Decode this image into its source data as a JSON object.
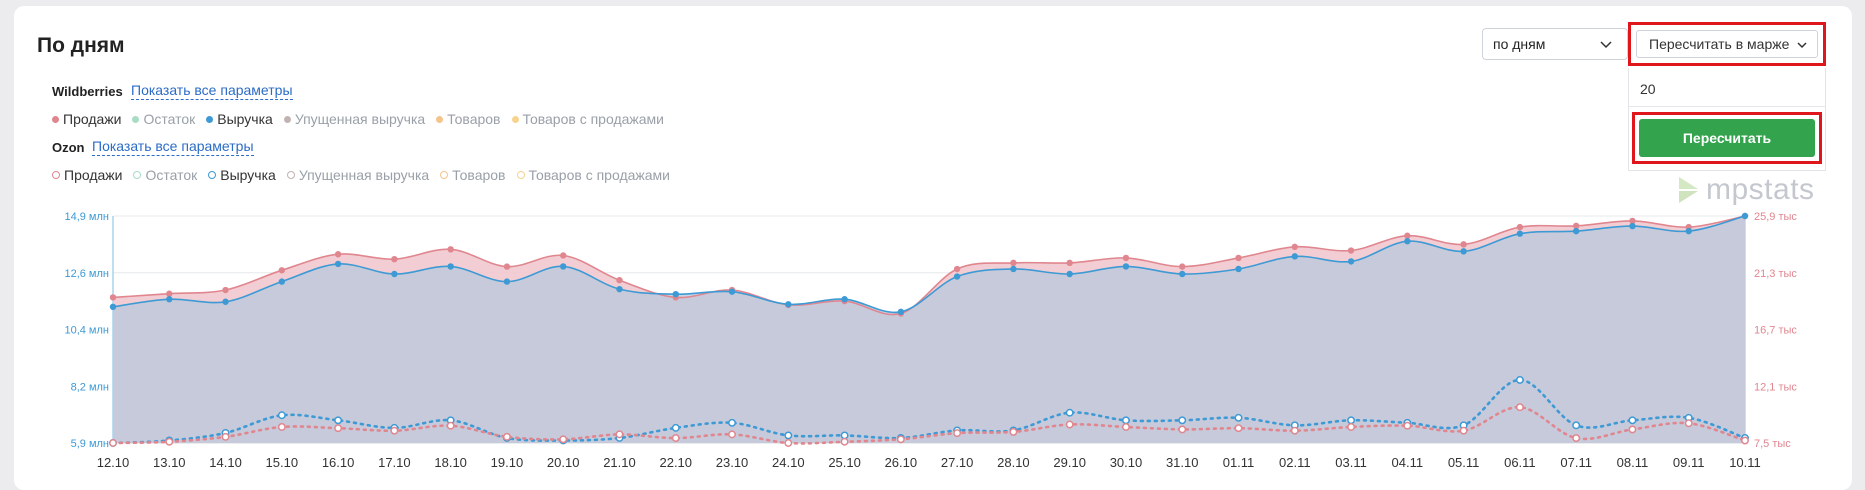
{
  "page_title": "По дням",
  "period_select": {
    "value": "по дням"
  },
  "recalc": {
    "dropdown_label": "Пересчитать в марже",
    "margin_value": "20",
    "button_label": "Пересчитать"
  },
  "brand": {
    "name": "mpstats"
  },
  "wildberries": {
    "label": "Wildberries",
    "show_all_link": "Показать все параметры",
    "legend": [
      {
        "label": "Продажи",
        "color": "#e0868f",
        "active": true
      },
      {
        "label": "Остаток",
        "color": "#a8dcc4",
        "active": false
      },
      {
        "label": "Выручка",
        "color": "#3d9ad5",
        "active": true
      },
      {
        "label": "Упущенная выручка",
        "color": "#c2b3b3",
        "active": false
      },
      {
        "label": "Товаров",
        "color": "#f5c48a",
        "active": false
      },
      {
        "label": "Товаров с продажами",
        "color": "#f6d48e",
        "active": false
      }
    ]
  },
  "ozon": {
    "label": "Ozon",
    "show_all_link": "Показать все параметры",
    "legend": [
      {
        "label": "Продажи",
        "color": "#e0868f",
        "active": true
      },
      {
        "label": "Остаток",
        "color": "#a8dcc4",
        "active": false
      },
      {
        "label": "Выручка",
        "color": "#3d9ad5",
        "active": true
      },
      {
        "label": "Упущенная выручка",
        "color": "#c2b3b3",
        "active": false
      },
      {
        "label": "Товаров",
        "color": "#f5c48a",
        "active": false
      },
      {
        "label": "Товаров с продажами",
        "color": "#f6d48e",
        "active": false
      }
    ]
  },
  "chart_data": {
    "type": "area",
    "categories": [
      "12.10",
      "13.10",
      "14.10",
      "15.10",
      "16.10",
      "17.10",
      "18.10",
      "19.10",
      "20.10",
      "21.10",
      "22.10",
      "23.10",
      "24.10",
      "25.10",
      "26.10",
      "27.10",
      "28.10",
      "29.10",
      "30.10",
      "31.10",
      "01.11",
      "02.11",
      "03.11",
      "04.11",
      "05.11",
      "06.11",
      "07.11",
      "08.11",
      "09.11",
      "10.11"
    ],
    "y_left": {
      "ticks": [
        "14,9 млн",
        "12,6 млн",
        "10,4 млн",
        "8,2 млн",
        "5,9 млн"
      ],
      "min": 5.9,
      "max": 14.9,
      "unit": "млн",
      "color": "#3d9ad5"
    },
    "y_right": {
      "ticks": [
        "25,9 тыс",
        "21,3 тыс",
        "16,7 тыс",
        "12,1 тыс",
        "7,5 тыс"
      ],
      "min": 7.5,
      "max": 25.9,
      "unit": "тыс",
      "color": "#e0868f"
    },
    "series": [
      {
        "name": "Wildberries Выручка",
        "axis": "left",
        "color": "#3d9ad5",
        "style": "solid-area",
        "values": [
          11.3,
          11.6,
          11.5,
          12.3,
          13.0,
          12.6,
          12.9,
          12.3,
          12.9,
          12.0,
          11.8,
          11.9,
          11.4,
          11.6,
          11.1,
          12.5,
          12.8,
          12.6,
          12.9,
          12.6,
          12.8,
          13.3,
          13.1,
          13.9,
          13.5,
          14.2,
          14.3,
          14.5,
          14.3,
          14.9
        ]
      },
      {
        "name": "Wildberries Продажи",
        "axis": "right",
        "color": "#e0868f",
        "style": "solid-area",
        "values": [
          19.3,
          19.6,
          19.9,
          21.5,
          22.8,
          22.4,
          23.2,
          21.8,
          22.7,
          20.7,
          19.3,
          19.9,
          18.7,
          19.0,
          18.0,
          21.6,
          22.1,
          22.1,
          22.5,
          21.8,
          22.5,
          23.4,
          23.1,
          24.3,
          23.6,
          25.0,
          25.1,
          25.5,
          25.0,
          25.9
        ]
      },
      {
        "name": "Ozon Выручка",
        "axis": "left",
        "color": "#3d9ad5",
        "style": "dotted-ring",
        "values": [
          5.9,
          6.0,
          6.3,
          7.0,
          6.8,
          6.5,
          6.8,
          6.1,
          6.0,
          6.1,
          6.5,
          6.7,
          6.2,
          6.2,
          6.1,
          6.4,
          6.4,
          7.1,
          6.8,
          6.8,
          6.9,
          6.6,
          6.8,
          6.7,
          6.6,
          8.4,
          6.6,
          6.8,
          6.9,
          6.1
        ]
      },
      {
        "name": "Ozon Продажи",
        "axis": "right",
        "color": "#e0868f",
        "style": "dotted-ring",
        "values": [
          7.5,
          7.6,
          8.0,
          8.8,
          8.7,
          8.5,
          8.9,
          8.0,
          7.8,
          8.2,
          7.9,
          8.2,
          7.5,
          7.6,
          7.8,
          8.3,
          8.4,
          9.0,
          8.8,
          8.6,
          8.7,
          8.5,
          8.8,
          8.9,
          8.5,
          10.4,
          7.9,
          8.6,
          9.1,
          7.7
        ]
      }
    ],
    "grid": true
  }
}
